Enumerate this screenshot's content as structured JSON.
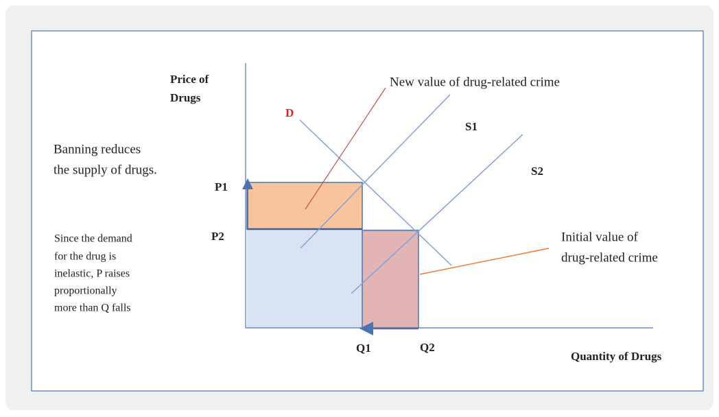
{
  "y_axis_label": [
    "Price of",
    "Drugs"
  ],
  "x_axis_label": "Quantity of Drugs",
  "curves": {
    "demand": "D",
    "supply_1": "S1",
    "supply_2": "S2"
  },
  "prices": [
    "P1",
    "P2"
  ],
  "quantities": [
    "Q1",
    "Q2"
  ],
  "annotations": {
    "new_crime": "New value of drug-related crime",
    "initial_crime": [
      "Initial value of",
      "drug-related crime"
    ],
    "banning": [
      "Banning reduces",
      "the supply of drugs."
    ],
    "inelastic": [
      "Since the demand",
      "for the drug is",
      "inelastic, P raises",
      "proportionally",
      "more than Q falls"
    ]
  }
}
